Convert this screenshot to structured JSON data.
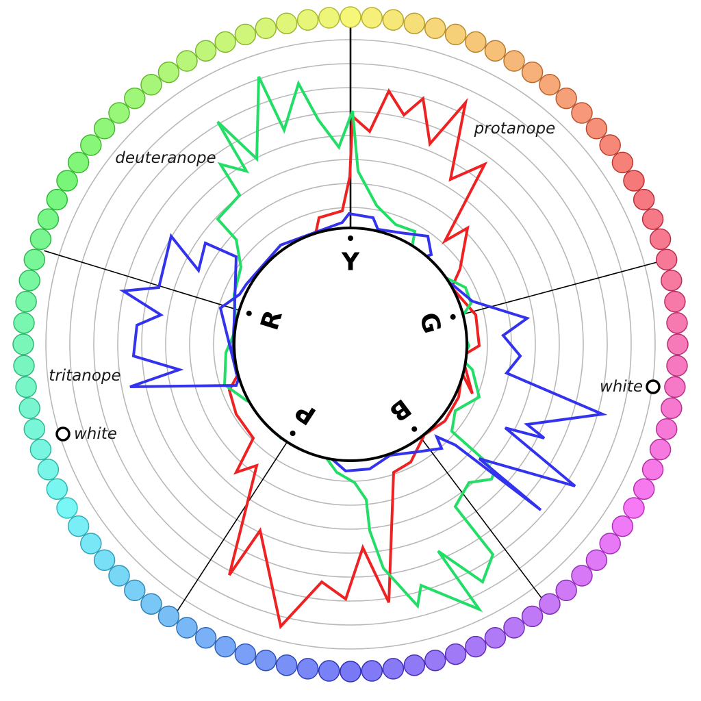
{
  "hue_letters": [
    "Y",
    "G",
    "B",
    "P",
    "R"
  ],
  "series": [
    {
      "name": "protanope",
      "color": "#ee2222"
    },
    {
      "name": "deuteranope",
      "color": "#22dd66"
    },
    {
      "name": "tritanope",
      "color": "#3333ee"
    }
  ],
  "white_marker_label": "white"
}
